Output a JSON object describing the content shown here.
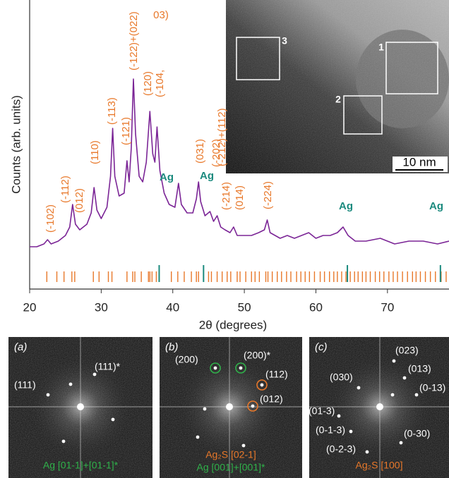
{
  "chart_data": {
    "type": "line",
    "x_label": "2θ (degrees)",
    "y_label": "Counts (arb. units)",
    "xlim": [
      20,
      78.6
    ],
    "xticks": [
      20,
      30,
      40,
      50,
      60,
      70
    ],
    "ylim": [
      0,
      100
    ],
    "color": "#7b2596",
    "x": [
      20,
      21,
      22,
      22.5,
      23,
      24,
      25,
      25.6,
      26,
      26.4,
      27,
      28,
      28.6,
      29,
      29.4,
      30,
      30.8,
      31.3,
      31.6,
      31.9,
      32.5,
      33.2,
      33.6,
      33.9,
      34.2,
      34.5,
      34.8,
      35.3,
      35.8,
      36.3,
      36.8,
      37.2,
      37.5,
      37.8,
      38.2,
      38.8,
      39.5,
      40.3,
      40.8,
      41.2,
      42,
      42.8,
      43.3,
      43.6,
      43.9,
      44.5,
      45.2,
      45.7,
      46.2,
      46.7,
      47.3,
      48,
      48.5,
      49,
      50,
      51,
      52,
      52.8,
      53.2,
      53.6,
      55,
      56,
      57,
      58,
      59,
      60,
      61,
      62,
      63,
      63.8,
      64.5,
      65.5,
      67,
      69,
      71,
      73,
      75,
      77,
      78.6
    ],
    "values": [
      15,
      15,
      16,
      17.5,
      16,
      17,
      19,
      22,
      30,
      23,
      21,
      23,
      27,
      36,
      28,
      25,
      29,
      40,
      57,
      40,
      33,
      34,
      45.5,
      38,
      50,
      74.5,
      55,
      40,
      38,
      45,
      63,
      48,
      45,
      57.5,
      42,
      34,
      30,
      29,
      37.5,
      30,
      27,
      27,
      32,
      38,
      31,
      26,
      27.5,
      24,
      26,
      22,
      21,
      20,
      22,
      19,
      19,
      19,
      20,
      21,
      24.5,
      20,
      18,
      19,
      18,
      19,
      20,
      18,
      19,
      19,
      20,
      22,
      19,
      17,
      17,
      18,
      16,
      17,
      17,
      16,
      17
    ],
    "reflections": [
      {
        "color": "#e8782a",
        "positions": [
          22.4,
          23.8,
          24.8,
          25.9,
          26.3,
          28.9,
          29.7,
          31.0,
          31.5,
          33.6,
          34.4,
          34.7,
          35.6,
          36.6,
          36.8,
          37.1,
          37.7,
          39.8,
          40.7,
          41.6,
          42.6,
          43.3,
          43.6,
          45.0,
          45.4,
          46.2,
          46.9,
          47.6,
          48.1,
          49.0,
          49.4,
          50.2,
          51.0,
          51.5,
          52.1,
          53.0,
          53.3,
          53.9,
          54.6,
          55.2,
          55.9,
          56.5,
          57.3,
          57.9,
          58.5,
          59.1,
          59.8,
          60.6,
          61.2,
          61.9,
          62.5,
          63.0,
          63.6,
          64.2,
          64.8,
          65.4,
          65.9,
          66.5,
          67.0,
          67.6,
          68.3,
          68.9,
          69.5,
          70.2,
          70.8,
          71.4,
          72.1,
          72.8,
          73.5,
          74.0,
          74.6,
          75.3,
          76.0,
          76.7,
          77.5,
          78.2
        ]
      },
      {
        "color": "#1b8a7e",
        "positions": [
          38.1,
          44.3,
          64.4,
          77.4
        ]
      }
    ],
    "peak_labels": [
      "(-102)",
      "(-112)",
      "(012)",
      "(110)",
      "(-113)",
      "(-121)",
      "(-122)+(022)",
      "(120)",
      "(-104,",
      "03)",
      "(031)",
      "(-202)",
      "(-212)+(112)",
      "(-214)",
      "(014)",
      "(-224)"
    ],
    "phase_labels": [
      "Ag",
      "Ag",
      "Ag",
      "Ag"
    ]
  },
  "inset": {
    "regions": [
      "1",
      "2",
      "3"
    ],
    "scale_bar": "10 nm"
  },
  "fft_panels": [
    {
      "label": "(a)",
      "spots": [
        "(111)*",
        "(111)"
      ],
      "zone_axes": [
        {
          "text": "Ag [01-1]+[01-1]*",
          "color": "#2fb24a"
        }
      ]
    },
    {
      "label": "(b)",
      "spots": [
        "(200)",
        "(200)*",
        "(112)",
        "(012)"
      ],
      "zone_axes": [
        {
          "text": "Ag₂S [02-1]",
          "color": "#e8782a"
        },
        {
          "text": "Ag [001]+[001]*",
          "color": "#2fb24a"
        }
      ]
    },
    {
      "label": "(c)",
      "spots": [
        "(023)",
        "(013)",
        "(0-13)",
        "(030)",
        "(01-3)",
        "(0-1-3)",
        "(0-30)",
        "(0-2-3)"
      ],
      "zone_axes": [
        {
          "text": "Ag₂S [100]",
          "color": "#e8782a"
        }
      ]
    }
  ]
}
